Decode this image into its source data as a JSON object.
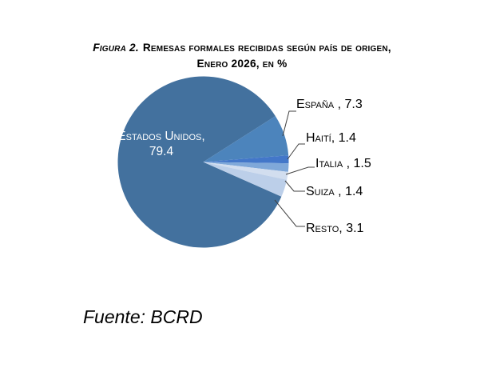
{
  "title": {
    "figure_label": "Figura 2.",
    "line1_rest": "Remesas formales recibidas según país de origen,",
    "line2": "Enero 2026, en %"
  },
  "pie": {
    "inner_label": "Estados Unidos, 79.4",
    "callouts": [
      {
        "label": "España , 7.3"
      },
      {
        "label": "Haití, 1.4"
      },
      {
        "label": "Italia , 1.5"
      },
      {
        "label": "Suiza , 1.4"
      },
      {
        "label": "Resto, 3.1"
      }
    ]
  },
  "source_note": "Fuente: BCRD",
  "chart_data": {
    "type": "pie",
    "title": "Figura 2. Remesas formales recibidas según país de origen, Enero 2026, en %",
    "categories": [
      "Estados Unidos",
      "España",
      "Haití",
      "Italia",
      "Suiza",
      "Resto"
    ],
    "values": [
      79.4,
      7.3,
      1.4,
      1.5,
      1.4,
      3.1
    ],
    "unit": "%",
    "colors": [
      "#43719E",
      "#4C84BC",
      "#4377C9",
      "#7FA8D9",
      "#D2DEEF",
      "#BCCFE9"
    ],
    "start_angle_deg": 23.84,
    "data_labels": [
      "Estados Unidos, 79.4",
      "España , 7.3",
      "Haití, 1.4",
      "Italia , 1.5",
      "Suiza , 1.4",
      "Resto, 3.1"
    ],
    "label_style": "callout",
    "legend_position": "none",
    "source": "Fuente: BCRD"
  }
}
